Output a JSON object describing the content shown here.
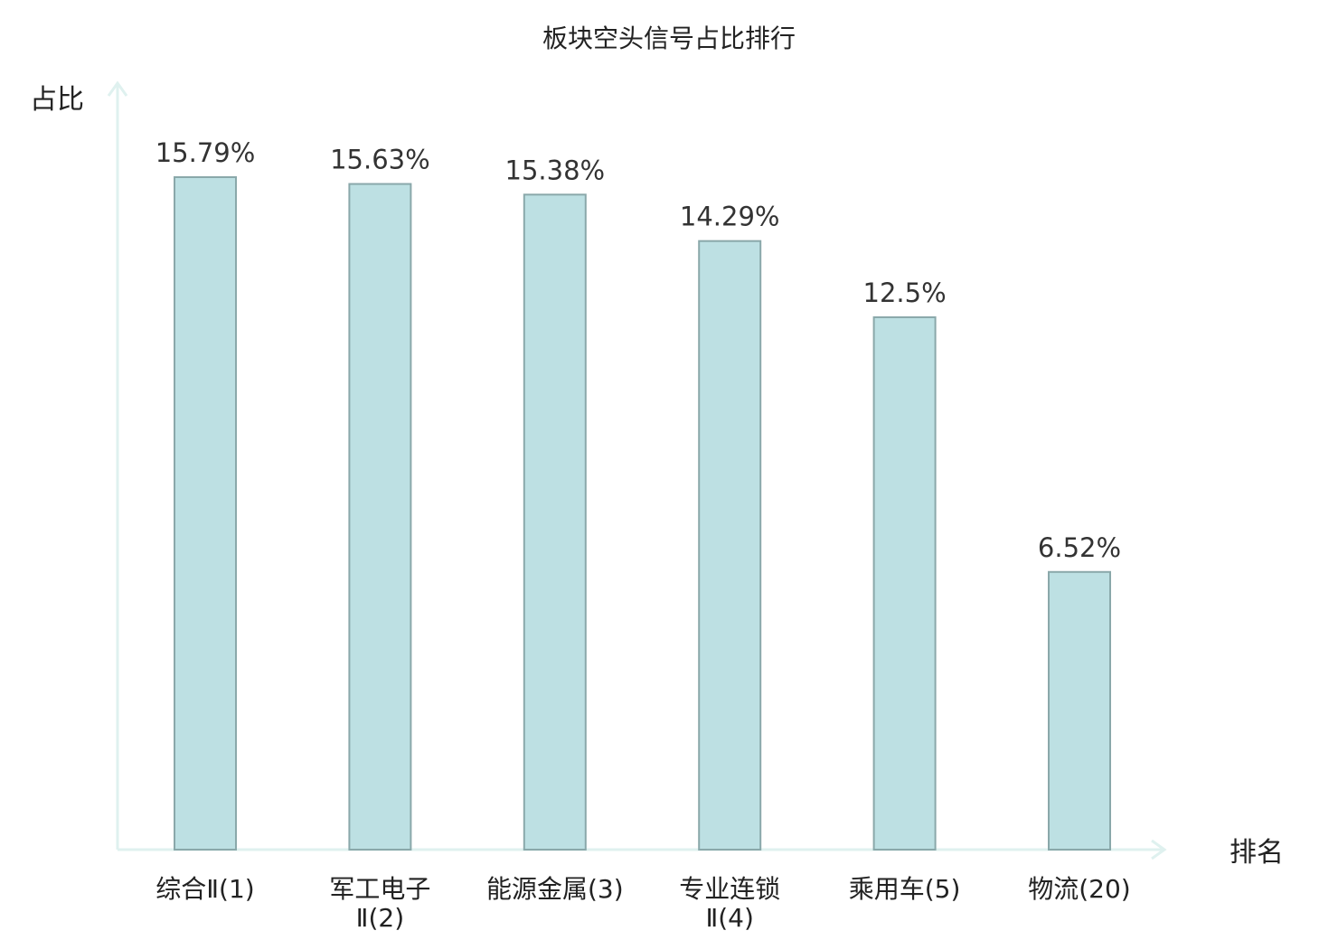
{
  "chart_data": {
    "type": "bar",
    "title": "板块空头信号占比排行",
    "xlabel": "排名",
    "ylabel": "占比",
    "ylim": [
      0,
      17
    ],
    "categories": [
      [
        "综合Ⅱ(1)"
      ],
      [
        "军工电子",
        "Ⅱ(2)"
      ],
      [
        "能源金属(3)"
      ],
      [
        "专业连锁",
        "Ⅱ(4)"
      ],
      [
        "乘用车(5)"
      ],
      [
        "物流(20)"
      ]
    ],
    "values": [
      15.79,
      15.63,
      15.38,
      14.29,
      12.5,
      6.52
    ],
    "value_labels": [
      "15.79%",
      "15.63%",
      "15.38%",
      "14.29%",
      "12.5%",
      "6.52%"
    ],
    "highlight_index": 5,
    "grid": false
  },
  "colors": {
    "bar_fill": "#bde0e3",
    "bar_stroke": "#8aa8aa",
    "axis": "#dff1ef",
    "highlight_label": "#dd0000",
    "text": "#222222"
  }
}
